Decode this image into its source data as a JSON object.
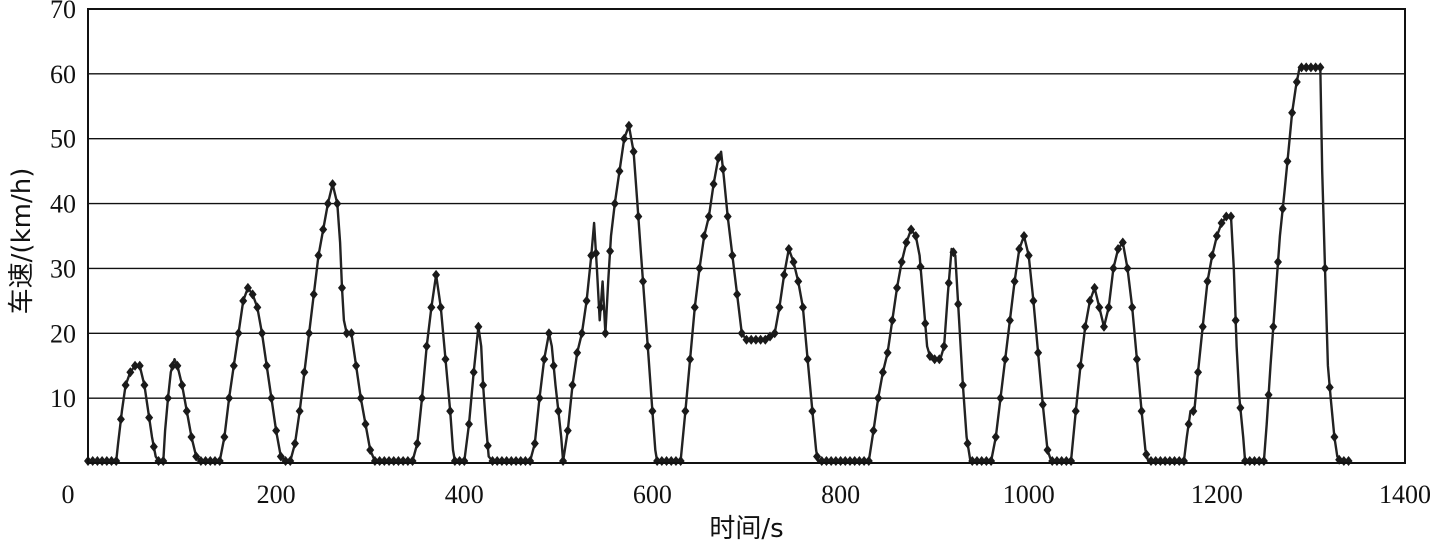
{
  "chart_data": {
    "type": "scatter",
    "xlabel": "时间/s",
    "ylabel": "车速/(km/h)",
    "xlim": [
      0,
      1400
    ],
    "ylim": [
      0,
      70
    ],
    "x_ticks": [
      0,
      200,
      400,
      600,
      800,
      1000,
      1200,
      1400
    ],
    "y_ticks": [
      10,
      20,
      30,
      40,
      50,
      60,
      70
    ],
    "x_origin_label": "0",
    "grid": "horizontal",
    "point_color": "#1a1a1a",
    "series": [
      {
        "points": [
          [
            0,
            0
          ],
          [
            10,
            0
          ],
          [
            20,
            0
          ],
          [
            25,
            0
          ],
          [
            30,
            0
          ],
          [
            32,
            3
          ],
          [
            36,
            8
          ],
          [
            40,
            12
          ],
          [
            45,
            14
          ],
          [
            50,
            15
          ],
          [
            55,
            15
          ],
          [
            60,
            12
          ],
          [
            64,
            8
          ],
          [
            68,
            4
          ],
          [
            72,
            1
          ],
          [
            75,
            0
          ],
          [
            80,
            0
          ],
          [
            82,
            5
          ],
          [
            85,
            10
          ],
          [
            88,
            14
          ],
          [
            92,
            16
          ],
          [
            95,
            15
          ],
          [
            100,
            12
          ],
          [
            105,
            8
          ],
          [
            110,
            4
          ],
          [
            115,
            1
          ],
          [
            120,
            0
          ],
          [
            130,
            0
          ],
          [
            140,
            0
          ],
          [
            145,
            4
          ],
          [
            150,
            10
          ],
          [
            155,
            15
          ],
          [
            160,
            20
          ],
          [
            165,
            25
          ],
          [
            170,
            27
          ],
          [
            175,
            26
          ],
          [
            180,
            24
          ],
          [
            185,
            20
          ],
          [
            190,
            15
          ],
          [
            195,
            10
          ],
          [
            200,
            5
          ],
          [
            205,
            1
          ],
          [
            210,
            0
          ],
          [
            215,
            0
          ],
          [
            220,
            3
          ],
          [
            225,
            8
          ],
          [
            230,
            14
          ],
          [
            235,
            20
          ],
          [
            240,
            26
          ],
          [
            245,
            32
          ],
          [
            250,
            36
          ],
          [
            255,
            40
          ],
          [
            260,
            43
          ],
          [
            265,
            40
          ],
          [
            268,
            34
          ],
          [
            270,
            27
          ],
          [
            272,
            22
          ],
          [
            275,
            20
          ],
          [
            280,
            20
          ],
          [
            285,
            15
          ],
          [
            290,
            10
          ],
          [
            295,
            6
          ],
          [
            300,
            2
          ],
          [
            305,
            0
          ],
          [
            315,
            0
          ],
          [
            325,
            0
          ],
          [
            335,
            0
          ],
          [
            345,
            0
          ],
          [
            350,
            3
          ],
          [
            355,
            10
          ],
          [
            360,
            18
          ],
          [
            365,
            24
          ],
          [
            370,
            29
          ],
          [
            375,
            24
          ],
          [
            380,
            16
          ],
          [
            385,
            8
          ],
          [
            388,
            2
          ],
          [
            390,
            0
          ],
          [
            395,
            0
          ],
          [
            400,
            0
          ],
          [
            405,
            6
          ],
          [
            410,
            14
          ],
          [
            415,
            21
          ],
          [
            418,
            18
          ],
          [
            420,
            12
          ],
          [
            423,
            6
          ],
          [
            426,
            1
          ],
          [
            430,
            0
          ],
          [
            440,
            0
          ],
          [
            450,
            0
          ],
          [
            460,
            0
          ],
          [
            470,
            0
          ],
          [
            475,
            3
          ],
          [
            480,
            10
          ],
          [
            485,
            16
          ],
          [
            490,
            20
          ],
          [
            493,
            18
          ],
          [
            497,
            12
          ],
          [
            500,
            8
          ],
          [
            503,
            4
          ],
          [
            505,
            0
          ],
          [
            510,
            5
          ],
          [
            515,
            12
          ],
          [
            520,
            17
          ],
          [
            525,
            20
          ],
          [
            530,
            25
          ],
          [
            535,
            32
          ],
          [
            538,
            37
          ],
          [
            541,
            30
          ],
          [
            544,
            22
          ],
          [
            547,
            28
          ],
          [
            550,
            20
          ],
          [
            553,
            28
          ],
          [
            556,
            35
          ],
          [
            560,
            40
          ],
          [
            565,
            45
          ],
          [
            570,
            50
          ],
          [
            575,
            52
          ],
          [
            580,
            48
          ],
          [
            584,
            40
          ],
          [
            588,
            32
          ],
          [
            592,
            24
          ],
          [
            596,
            16
          ],
          [
            600,
            8
          ],
          [
            603,
            2
          ],
          [
            605,
            0
          ],
          [
            615,
            0
          ],
          [
            625,
            0
          ],
          [
            630,
            0
          ],
          [
            635,
            8
          ],
          [
            640,
            16
          ],
          [
            645,
            24
          ],
          [
            650,
            30
          ],
          [
            655,
            35
          ],
          [
            660,
            38
          ],
          [
            665,
            43
          ],
          [
            670,
            47
          ],
          [
            673,
            48
          ],
          [
            676,
            44
          ],
          [
            680,
            38
          ],
          [
            685,
            32
          ],
          [
            690,
            26
          ],
          [
            695,
            20
          ],
          [
            700,
            19
          ],
          [
            710,
            19
          ],
          [
            720,
            19
          ],
          [
            730,
            20
          ],
          [
            735,
            24
          ],
          [
            740,
            29
          ],
          [
            745,
            33
          ],
          [
            750,
            31
          ],
          [
            755,
            28
          ],
          [
            760,
            24
          ],
          [
            765,
            16
          ],
          [
            770,
            8
          ],
          [
            774,
            2
          ],
          [
            776,
            0
          ],
          [
            790,
            0
          ],
          [
            805,
            0
          ],
          [
            820,
            0
          ],
          [
            830,
            0
          ],
          [
            835,
            5
          ],
          [
            840,
            10
          ],
          [
            845,
            14
          ],
          [
            850,
            17
          ],
          [
            855,
            22
          ],
          [
            860,
            27
          ],
          [
            865,
            31
          ],
          [
            870,
            34
          ],
          [
            875,
            36
          ],
          [
            880,
            35
          ],
          [
            884,
            32
          ],
          [
            888,
            25
          ],
          [
            892,
            18
          ],
          [
            896,
            16
          ],
          [
            900,
            16
          ],
          [
            906,
            16
          ],
          [
            910,
            18
          ],
          [
            914,
            26
          ],
          [
            918,
            33
          ],
          [
            922,
            32
          ],
          [
            926,
            22
          ],
          [
            930,
            12
          ],
          [
            934,
            4
          ],
          [
            938,
            0
          ],
          [
            950,
            0
          ],
          [
            960,
            0
          ],
          [
            965,
            4
          ],
          [
            970,
            10
          ],
          [
            975,
            16
          ],
          [
            980,
            22
          ],
          [
            985,
            28
          ],
          [
            990,
            33
          ],
          [
            995,
            35
          ],
          [
            1000,
            32
          ],
          [
            1005,
            25
          ],
          [
            1010,
            17
          ],
          [
            1015,
            9
          ],
          [
            1020,
            2
          ],
          [
            1024,
            0
          ],
          [
            1035,
            0
          ],
          [
            1045,
            0
          ],
          [
            1050,
            8
          ],
          [
            1055,
            15
          ],
          [
            1060,
            21
          ],
          [
            1065,
            25
          ],
          [
            1070,
            27
          ],
          [
            1075,
            24
          ],
          [
            1080,
            21
          ],
          [
            1085,
            24
          ],
          [
            1090,
            30
          ],
          [
            1095,
            33
          ],
          [
            1100,
            34
          ],
          [
            1105,
            30
          ],
          [
            1110,
            24
          ],
          [
            1115,
            16
          ],
          [
            1120,
            8
          ],
          [
            1124,
            2
          ],
          [
            1127,
            0
          ],
          [
            1140,
            0
          ],
          [
            1155,
            0
          ],
          [
            1165,
            0
          ],
          [
            1168,
            4
          ],
          [
            1172,
            8
          ],
          [
            1176,
            8
          ],
          [
            1180,
            14
          ],
          [
            1185,
            21
          ],
          [
            1190,
            28
          ],
          [
            1195,
            32
          ],
          [
            1200,
            35
          ],
          [
            1205,
            37
          ],
          [
            1210,
            38
          ],
          [
            1215,
            38
          ],
          [
            1218,
            30
          ],
          [
            1221,
            18
          ],
          [
            1224,
            10
          ],
          [
            1228,
            4
          ],
          [
            1230,
            0
          ],
          [
            1240,
            0
          ],
          [
            1250,
            0
          ],
          [
            1253,
            6
          ],
          [
            1257,
            15
          ],
          [
            1262,
            25
          ],
          [
            1267,
            35
          ],
          [
            1272,
            42
          ],
          [
            1276,
            48
          ],
          [
            1280,
            54
          ],
          [
            1284,
            58
          ],
          [
            1288,
            61
          ],
          [
            1295,
            61
          ],
          [
            1305,
            61
          ],
          [
            1310,
            61
          ],
          [
            1312,
            45
          ],
          [
            1315,
            30
          ],
          [
            1318,
            15
          ],
          [
            1321,
            10
          ],
          [
            1325,
            4
          ],
          [
            1328,
            1
          ],
          [
            1332,
            0
          ],
          [
            1340,
            0
          ]
        ]
      }
    ]
  }
}
